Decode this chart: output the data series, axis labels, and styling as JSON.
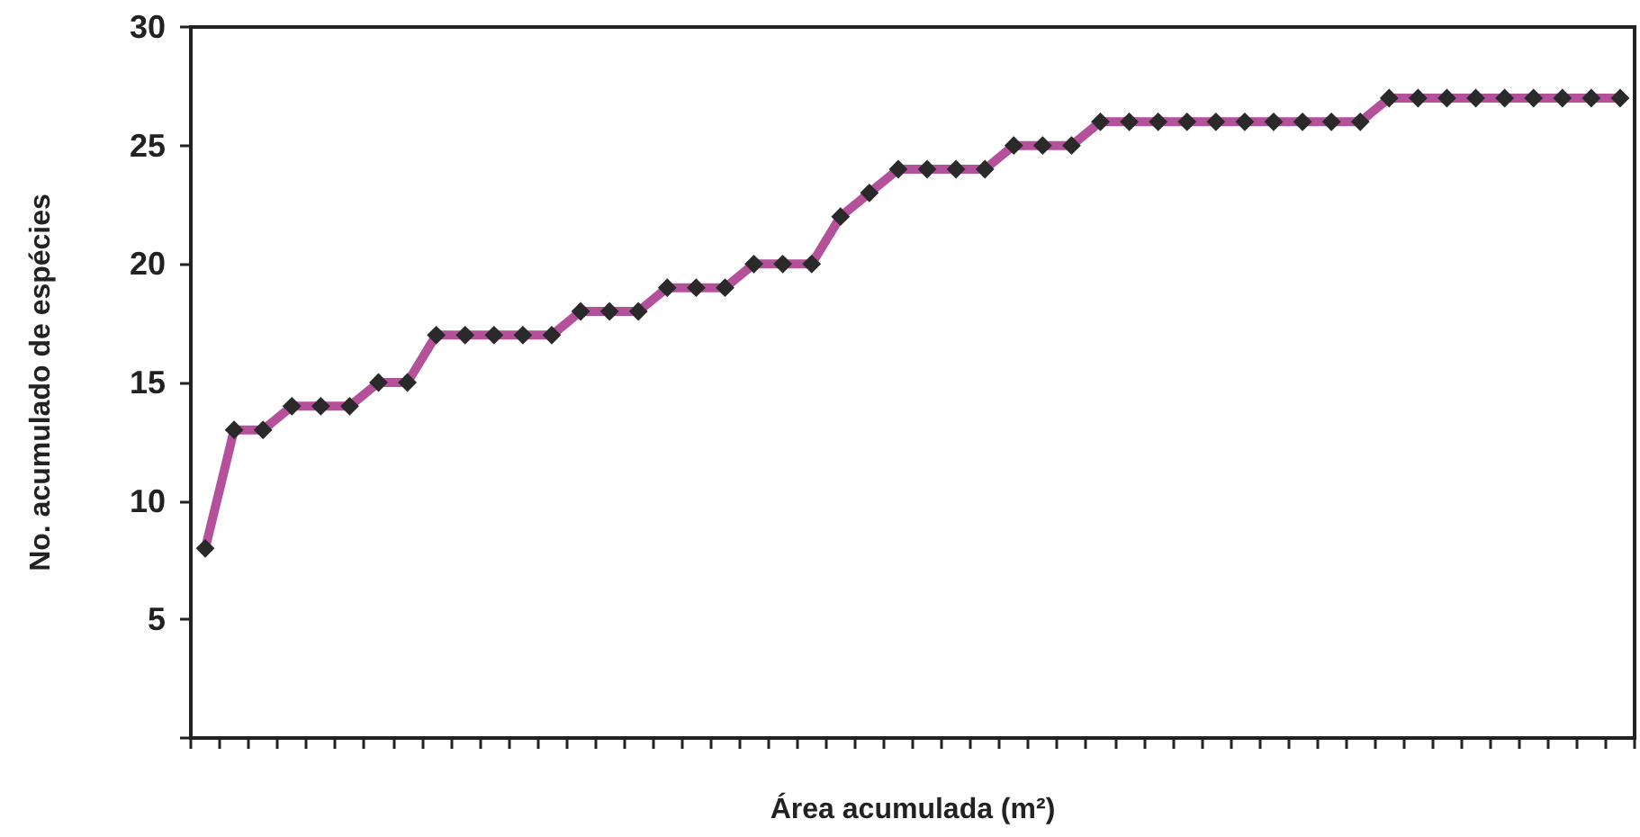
{
  "chart_data": {
    "type": "line",
    "xlabel": "Área acumulada (m²)",
    "ylabel": "No. acumulado de espécies",
    "categories": [
      null,
      null,
      null,
      null,
      null,
      null,
      null,
      null,
      null,
      null,
      null,
      null,
      null,
      null,
      null,
      null,
      null,
      null,
      null,
      null,
      null,
      null,
      null,
      null,
      null,
      null,
      null,
      null,
      null,
      null,
      null,
      null,
      null,
      null,
      null,
      null,
      null,
      null,
      null,
      null,
      null,
      null,
      null,
      null,
      null,
      null,
      null,
      null,
      null,
      null
    ],
    "series": [
      {
        "color": "#b5509b",
        "values": [
          8,
          13,
          13,
          14,
          14,
          14,
          15,
          15,
          17,
          17,
          17,
          17,
          17,
          18,
          18,
          18,
          19,
          19,
          19,
          20,
          20,
          20,
          22,
          23,
          24,
          24,
          24,
          24,
          25,
          25,
          25,
          26,
          26,
          26,
          26,
          26,
          26,
          26,
          26,
          26,
          26,
          27,
          27,
          27,
          27,
          27,
          27,
          27,
          27,
          27
        ]
      }
    ],
    "ylim": [
      0,
      30
    ],
    "yticks": [
      {
        "value": 0,
        "label": null
      },
      5,
      10,
      15,
      20,
      25,
      30
    ],
    "grid": false,
    "marker": "diamond",
    "line_style": "solid"
  }
}
